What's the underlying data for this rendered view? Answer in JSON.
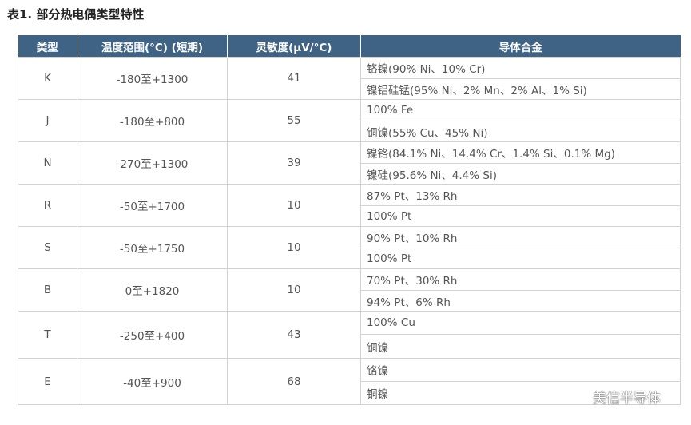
{
  "caption": "表1. 部分热电偶类型特性",
  "headers": [
    "类型",
    "温度范围(°C) (短期)",
    "灵敏度(μV/°C)",
    "导体合金"
  ],
  "rows": [
    {
      "type": "K",
      "range": "-180至+1300",
      "sensitivity": "41",
      "alloys": [
        "铬镍(90% Ni、10% Cr)",
        "镍铝硅锰(95% Ni、2% Mn、2% Al、1% Si)"
      ]
    },
    {
      "type": "J",
      "range": "-180至+800",
      "sensitivity": "55",
      "alloys": [
        "100% Fe",
        "铜镍(55% Cu、45% Ni)"
      ]
    },
    {
      "type": "N",
      "range": "-270至+1300",
      "sensitivity": "39",
      "alloys": [
        "镍铬(84.1% Ni、14.4% Cr、1.4% Si、0.1% Mg)",
        "镍硅(95.6% Ni、4.4% Si)"
      ]
    },
    {
      "type": "R",
      "range": "-50至+1700",
      "sensitivity": "10",
      "alloys": [
        "87% Pt、13% Rh",
        "100% Pt"
      ]
    },
    {
      "type": "S",
      "range": "-50至+1750",
      "sensitivity": "10",
      "alloys": [
        "90% Pt、10% Rh",
        "100% Pt"
      ]
    },
    {
      "type": "B",
      "range": "0至+1820",
      "sensitivity": "10",
      "alloys": [
        "70% Pt、30% Rh",
        "94% Pt、6% Rh"
      ]
    },
    {
      "type": "T",
      "range": "-250至+400",
      "sensitivity": "43",
      "alloys": [
        "100% Cu",
        "铜镍"
      ]
    },
    {
      "type": "E",
      "range": "-40至+900",
      "sensitivity": "68",
      "alloys": [
        "铬镍",
        "铜镍"
      ]
    }
  ],
  "watermark": {
    "text": "美信半导体",
    "icon": "wechat-icon"
  }
}
